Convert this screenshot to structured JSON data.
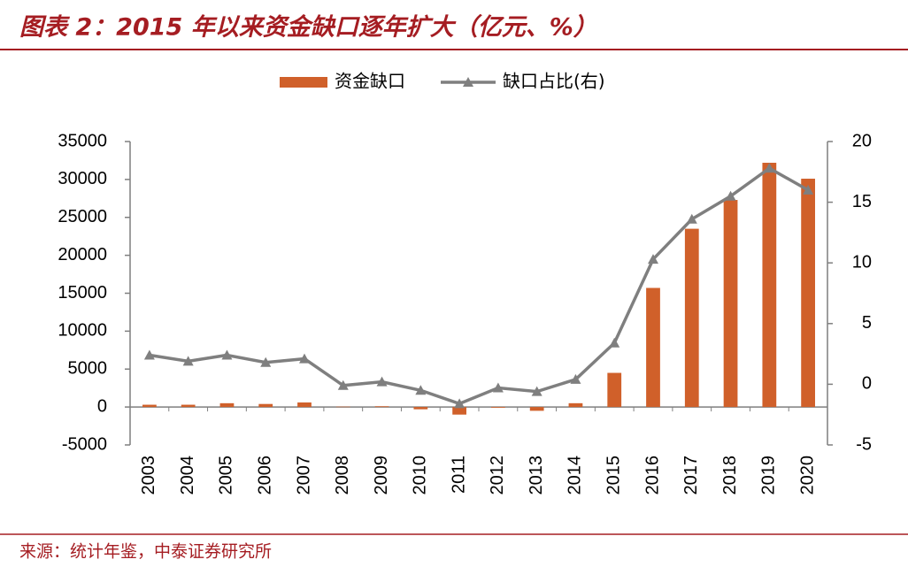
{
  "chart_data": {
    "type": "bar_line",
    "title": "图表 2：2015 年以来资金缺口逐年扩大（亿元、%）",
    "source": "来源：统计年鉴，中泰证券研究所",
    "categories": [
      "2003",
      "2004",
      "2005",
      "2006",
      "2007",
      "2008",
      "2009",
      "2010",
      "2011",
      "2012",
      "2013",
      "2014",
      "2015",
      "2016",
      "2017",
      "2018",
      "2019",
      "2020"
    ],
    "series": [
      {
        "name": "资金缺口",
        "type": "bar",
        "color": "#d0602a",
        "values": [
          300,
          300,
          500,
          400,
          600,
          50,
          100,
          -300,
          -1000,
          -100,
          -500,
          500,
          4500,
          15700,
          23500,
          27300,
          32200,
          30100
        ]
      },
      {
        "name": "缺口占比(右)",
        "type": "line",
        "axis": "y2",
        "color": "#7f7f7f",
        "values": [
          2.4,
          1.9,
          2.4,
          1.8,
          2.1,
          -0.1,
          0.2,
          -0.5,
          -1.6,
          -0.3,
          -0.6,
          0.4,
          3.4,
          10.3,
          13.6,
          15.5,
          17.8,
          16.0
        ]
      }
    ],
    "ylim": [
      -5000,
      35000
    ],
    "yticks": [
      -5000,
      0,
      5000,
      10000,
      15000,
      20000,
      25000,
      30000,
      35000
    ],
    "y2lim": [
      -5,
      20
    ],
    "y2ticks": [
      -5,
      0,
      5,
      10,
      15,
      20
    ]
  }
}
